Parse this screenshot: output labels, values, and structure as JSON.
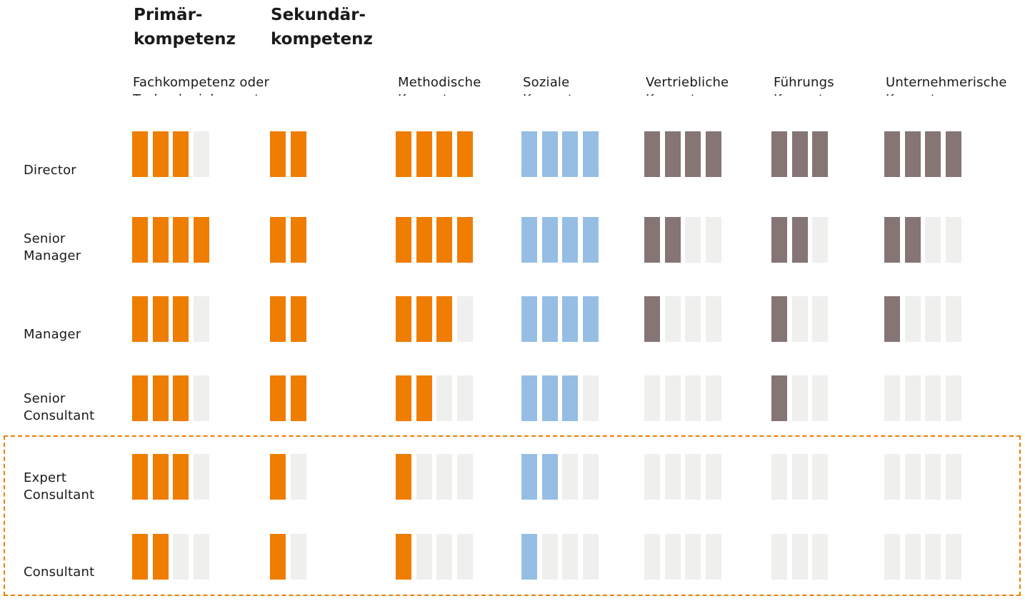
{
  "colors": {
    "fachlich": "#ef7d00",
    "sozial": "#96bee4",
    "fuehrung": "#857574",
    "empty": "#efefee",
    "highlight": "#ef7d00"
  },
  "headers": {
    "primary": "Primär-\nkompetenz",
    "secondary": "Sekundär-\nkompetenz"
  },
  "chart_data": {
    "type": "table",
    "columns": [
      {
        "name": "Fachkompetenz  oder\nTechnologiekompetenz",
        "subgroup": "Primärkompetenz",
        "max": 4,
        "color": "#ef7d00"
      },
      {
        "name": "",
        "subgroup": "Sekundärkompetenz",
        "max": 2,
        "color": "#ef7d00"
      },
      {
        "name": "Methodische\nKompetenz",
        "max": 4,
        "color": "#ef7d00"
      },
      {
        "name": "Soziale\nKompetenz",
        "max": 4,
        "color": "#96bee4"
      },
      {
        "name": "Vertriebliche\nKompetenz",
        "max": 4,
        "color": "#857574"
      },
      {
        "name": "Führungs\nKompetenz",
        "max": 3,
        "color": "#857574"
      },
      {
        "name": "Unternehmerische\nKompetenz",
        "max": 4,
        "color": "#857574"
      }
    ],
    "rows": [
      {
        "label": "Director",
        "values": [
          3,
          2,
          4,
          4,
          4,
          3,
          4
        ]
      },
      {
        "label": "Senior\nManager",
        "values": [
          4,
          2,
          4,
          4,
          2,
          2,
          2
        ]
      },
      {
        "label": "Manager",
        "values": [
          3,
          2,
          3,
          4,
          1,
          1,
          1
        ]
      },
      {
        "label": "Senior\nConsultant",
        "values": [
          3,
          2,
          2,
          3,
          0,
          1,
          0
        ]
      },
      {
        "label": "Expert\nConsultant",
        "values": [
          3,
          1,
          1,
          2,
          0,
          0,
          0
        ]
      },
      {
        "label": "Consultant",
        "values": [
          2,
          1,
          1,
          1,
          0,
          0,
          0
        ]
      }
    ],
    "highlighted_rows": [
      "Expert\nConsultant",
      "Consultant"
    ]
  }
}
